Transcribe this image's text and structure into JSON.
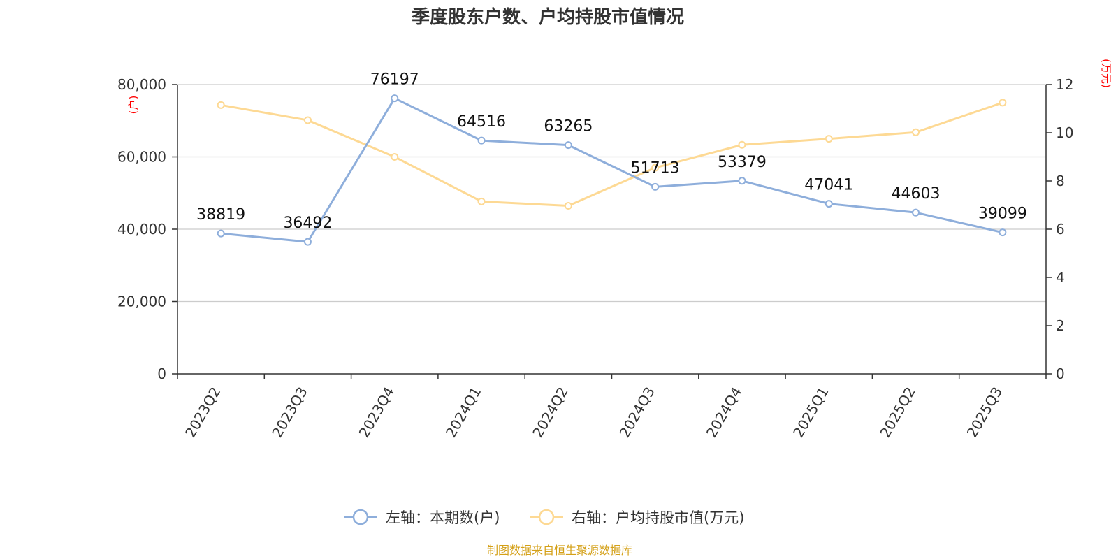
{
  "chart_data": {
    "type": "line",
    "title": "季度股东户数、户均持股市值情况",
    "categories": [
      "2023Q2",
      "2023Q3",
      "2023Q4",
      "2024Q1",
      "2024Q2",
      "2024Q3",
      "2024Q4",
      "2025Q1",
      "2025Q2",
      "2025Q3"
    ],
    "y_left": {
      "label": "(户)",
      "range": [
        0,
        80000
      ],
      "ticks": [
        "0",
        "20,000",
        "40,000",
        "60,000",
        "80,000"
      ]
    },
    "y_right": {
      "label": "(万元)",
      "range": [
        0,
        12
      ],
      "ticks": [
        "0",
        "2",
        "4",
        "6",
        "8",
        "10",
        "12"
      ]
    },
    "series": [
      {
        "name": "左轴：本期数(户)",
        "axis": "left",
        "color": "#8eaedb",
        "values": [
          38819,
          36492,
          76197,
          64516,
          63265,
          51713,
          53379,
          47041,
          44603,
          39099
        ],
        "labels": [
          "38819",
          "36492",
          "76197",
          "64516",
          "63265",
          "51713",
          "53379",
          "47041",
          "44603",
          "39099"
        ]
      },
      {
        "name": "右轴：户均持股市值(万元)",
        "axis": "right",
        "color": "#fdd994",
        "values": [
          11.15,
          10.52,
          9.0,
          7.15,
          6.97,
          8.55,
          9.5,
          9.75,
          10.02,
          11.25
        ]
      }
    ],
    "grid": true,
    "legend_position": "bottom"
  },
  "source": "制图数据来自恒生聚源数据库"
}
